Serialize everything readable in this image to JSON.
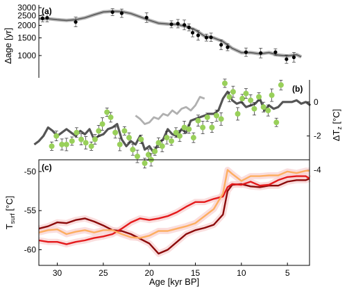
{
  "chart_data": [
    {
      "panel": "a",
      "panel_label": "(a)",
      "type": "line",
      "ylabel": "Δage [yr]",
      "yscale": "log",
      "ylim": [
        600,
        3200
      ],
      "yticks": [
        1000,
        1500,
        2000,
        2500,
        3000
      ],
      "colors": {
        "line": "#5a5a5a",
        "points": "#000000"
      },
      "series": [
        {
          "type": "line",
          "x": [
            32,
            31,
            30,
            29,
            28,
            27,
            26,
            25,
            24,
            23,
            22,
            21,
            20,
            19,
            18,
            17,
            16,
            15,
            14,
            13,
            12,
            11,
            10,
            9,
            8,
            7,
            6,
            5,
            4,
            3.5
          ],
          "y": [
            2330,
            2330,
            2280,
            2240,
            2280,
            2380,
            2550,
            2720,
            2760,
            2740,
            2620,
            2430,
            2250,
            2100,
            2060,
            2040,
            1950,
            1800,
            1560,
            1500,
            1380,
            1180,
            1070,
            1070,
            1040,
            1070,
            1010,
            990,
            1020,
            970
          ]
        },
        {
          "type": "scatter",
          "x": [
            31.6,
            31.1,
            28.0,
            24.0,
            23.0,
            20.3,
            17.6,
            16.9,
            16.2,
            15.7,
            15.3,
            14.7,
            13.8,
            13.3,
            12.2,
            11.5,
            9.5,
            7.9,
            6.3,
            5.1,
            4.3
          ],
          "y": [
            2350,
            2380,
            2160,
            2710,
            2640,
            2390,
            2050,
            2080,
            2020,
            1910,
            1690,
            1590,
            1510,
            1520,
            1280,
            1210,
            1080,
            1060,
            1080,
            920,
            960
          ]
        }
      ]
    },
    {
      "panel": "b",
      "panel_label": "(b)",
      "type": "line",
      "ylabel": "ΔT_z [°C]",
      "y_axis_side": "right",
      "ylim": [
        -4.3,
        1.3
      ],
      "yticks": [
        -4,
        -2,
        0
      ],
      "colors": {
        "model_dark": "#555555",
        "model_light": "#b0b0b0",
        "points": "#99d05a"
      },
      "series": [
        {
          "type": "line",
          "color": "#555555",
          "x": [
            32.5,
            32,
            31.5,
            31,
            30.5,
            30,
            29.5,
            29,
            28.5,
            28,
            27.5,
            27,
            26.5,
            26,
            25.5,
            25,
            24.5,
            24,
            23.5,
            23,
            22.5,
            22,
            21.5,
            21,
            20.5,
            20,
            19.5,
            19,
            18.5,
            18,
            17.5,
            17,
            16.5,
            16,
            15.5,
            15,
            14.5,
            14,
            13.5,
            13,
            12.5,
            12,
            11.5,
            11,
            10.5,
            10,
            9.5,
            9,
            8.5,
            8,
            7.5,
            7,
            6.5,
            6,
            5.5,
            5,
            4.5,
            4,
            3.5,
            3,
            2.5
          ],
          "y": [
            -2.5,
            -2.3,
            -2.0,
            -1.5,
            -1.7,
            -2.0,
            -1.8,
            -1.6,
            -1.8,
            -2.0,
            -1.7,
            -1.9,
            -1.6,
            -2.2,
            -2.0,
            -1.9,
            -1.6,
            -1.5,
            -1.3,
            -2.2,
            -2.6,
            -2.3,
            -2.5,
            -2.0,
            -2.8,
            -2.6,
            -3.0,
            -2.4,
            -2.2,
            -1.6,
            -1.9,
            -2.0,
            -1.6,
            -1.8,
            -1.1,
            -1.0,
            -0.9,
            -0.8,
            -0.7,
            -0.7,
            -0.5,
            0.2,
            0.6,
            0.1,
            -0.1,
            0.0,
            -0.3,
            -0.2,
            -0.1,
            0.2,
            -0.5,
            -0.2,
            -0.4,
            -0.3,
            0.0,
            0.0,
            0.0,
            0.1,
            -0.1,
            0.0,
            -0.2
          ]
        },
        {
          "type": "line",
          "color": "#b0b0b0",
          "x": [
            21.5,
            21,
            20.5,
            20,
            19.5,
            19,
            18.5,
            18,
            17.5,
            17,
            16.5,
            16,
            15.5,
            15,
            14.5,
            14
          ],
          "y": [
            -0.8,
            -1.0,
            -1.3,
            -1.2,
            -0.9,
            -1.0,
            -0.7,
            -0.8,
            -0.5,
            -0.7,
            -0.4,
            -0.3,
            -0.5,
            -0.2,
            0.3,
            0.2
          ]
        },
        {
          "type": "scatter",
          "color": "#99d05a",
          "x": [
            30.6,
            30.1,
            29.5,
            29.0,
            28.4,
            27.9,
            27.4,
            26.9,
            26.3,
            25.9,
            25.5,
            25.1,
            24.6,
            24.2,
            23.7,
            23.2,
            22.7,
            22.2,
            21.8,
            21.3,
            20.9,
            20.5,
            20.1,
            19.8,
            19.4,
            19.0,
            18.6,
            18.1,
            17.6,
            17.1,
            16.7,
            16.2,
            15.7,
            15.2,
            14.7,
            14.2,
            13.7,
            13.2,
            12.7,
            12.2,
            11.8,
            11.3,
            10.9,
            10.4,
            9.9,
            9.5,
            9.0,
            8.6,
            8.1,
            7.6,
            7.1,
            6.7,
            6.2,
            5.7
          ],
          "y": [
            -2.6,
            -2.0,
            -2.5,
            -2.5,
            -2.3,
            -1.8,
            -2.2,
            -2.4,
            -2.6,
            -2.2,
            -1.7,
            -1.3,
            -0.6,
            -0.9,
            -1.8,
            -2.5,
            -1.7,
            -2.1,
            -2.8,
            -3.2,
            -2.2,
            -3.6,
            -3.1,
            -3.4,
            -2.9,
            -2.4,
            -2.6,
            -2.1,
            -2.3,
            -1.8,
            -2.0,
            -1.5,
            -1.6,
            -2.1,
            -1.1,
            -1.5,
            -0.9,
            -1.5,
            -0.8,
            -1.0,
            1.1,
            0.3,
            0.6,
            -0.7,
            0.2,
            0.5,
            0.1,
            -0.4,
            0.3,
            -0.3,
            -0.5,
            0.4,
            -1.2,
            1.0
          ]
        }
      ]
    },
    {
      "panel": "c",
      "panel_label": "(c)",
      "type": "line",
      "xlabel": "Age [kyr BP]",
      "ylabel": "T_surf [°C]",
      "xlim": [
        32,
        2.6
      ],
      "xticks": [
        30,
        25,
        20,
        15,
        10,
        5
      ],
      "ylim": [
        -62,
        -48.5
      ],
      "yticks": [
        -60,
        -55,
        -50
      ],
      "colors": {
        "dark_red": "#8b0a0a",
        "red": "#e41a1c",
        "orange": "#fdae61",
        "pink_band": "#f8d0d0"
      },
      "series": [
        {
          "type": "line",
          "color": "#8b0a0a",
          "x": [
            32,
            31,
            30,
            29,
            28,
            27,
            26,
            25,
            24,
            23,
            22,
            21,
            20,
            19,
            18,
            17,
            16,
            15,
            14,
            13,
            12,
            11.5,
            11,
            10,
            9,
            8,
            7,
            6,
            5,
            4,
            3,
            2.6
          ],
          "y": [
            -57.3,
            -57.0,
            -56.5,
            -56.6,
            -56.2,
            -56.0,
            -56.4,
            -56.9,
            -57.5,
            -57.6,
            -58.0,
            -58.6,
            -59.2,
            -60.5,
            -60.0,
            -59.0,
            -58.0,
            -57.5,
            -57.2,
            -56.8,
            -55.5,
            -52.5,
            -51.7,
            -51.6,
            -51.9,
            -52.0,
            -51.8,
            -51.8,
            -51.3,
            -51.1,
            -51.1,
            -50.9
          ]
        },
        {
          "type": "line",
          "color": "#e41a1c",
          "x": [
            32,
            31,
            30,
            29,
            28,
            27,
            26,
            25,
            24,
            23,
            22,
            21,
            20,
            19,
            18,
            17,
            16,
            15,
            14,
            13,
            12,
            11.5,
            11,
            10,
            9,
            8,
            7,
            6,
            5,
            4,
            3,
            2.6
          ],
          "y": [
            -58.8,
            -59.0,
            -59.0,
            -59.3,
            -59.0,
            -58.8,
            -58.5,
            -58.3,
            -58.0,
            -57.3,
            -56.5,
            -56.0,
            -56.2,
            -56.0,
            -55.7,
            -55.2,
            -54.5,
            -53.9,
            -53.9,
            -53.5,
            -53.2,
            -52.0,
            -51.6,
            -51.7,
            -51.3,
            -51.8,
            -51.7,
            -51.1,
            -50.7,
            -50.6,
            -50.6,
            -50.9
          ]
        },
        {
          "type": "line",
          "color": "#fdae61",
          "x": [
            32,
            31,
            30,
            29,
            28,
            27,
            26,
            25,
            24,
            23,
            22,
            21,
            20,
            19,
            18,
            17,
            16,
            15,
            14,
            13,
            12,
            11.5,
            11,
            10,
            9,
            8,
            7,
            6,
            5,
            4,
            3,
            2.6
          ],
          "y": [
            -57.8,
            -57.5,
            -57.4,
            -58.0,
            -57.7,
            -57.5,
            -57.8,
            -57.5,
            -57.5,
            -58.0,
            -58.4,
            -58.5,
            -58.2,
            -57.6,
            -57.6,
            -57.3,
            -57.0,
            -56.6,
            -55.7,
            -54.8,
            -52.8,
            -49.8,
            -50.3,
            -51.2,
            -50.6,
            -50.6,
            -50.5,
            -50.5,
            -50.0,
            -50.2,
            -49.9,
            -49.9
          ]
        }
      ]
    }
  ]
}
